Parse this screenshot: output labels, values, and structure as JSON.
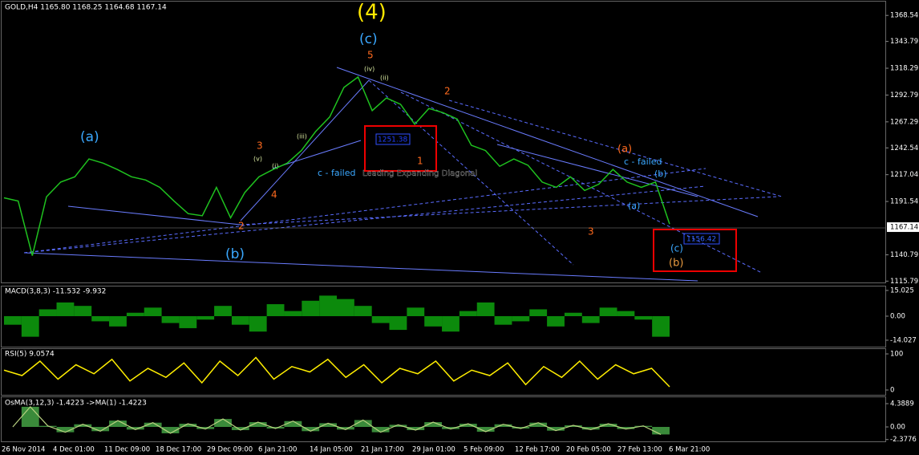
{
  "header": "GOLD,H4  1165.80 1168.25 1164.68 1167.14",
  "price": {
    "ylim": [
      1114.5,
      1383.2
    ],
    "yticks": [
      1368.54,
      1343.79,
      1318.29,
      1292.79,
      1267.29,
      1242.54,
      1217.04,
      1191.54,
      1140.79,
      1115.79
    ],
    "current": 1167.14,
    "closes": [
      1195,
      1192,
      1140,
      1196,
      1210,
      1215,
      1232,
      1228,
      1222,
      1215,
      1212,
      1205,
      1192,
      1180,
      1178,
      1205,
      1176,
      1200,
      1215,
      1222,
      1228,
      1240,
      1258,
      1272,
      1300,
      1310,
      1278,
      1290,
      1284,
      1265,
      1280,
      1276,
      1270,
      1245,
      1240,
      1225,
      1232,
      1226,
      1210,
      1205,
      1215,
      1202,
      1208,
      1222,
      1210,
      1205,
      1210,
      1170
    ]
  },
  "time_axis": [
    "26 Nov 2014",
    "4 Dec 01:00",
    "11 Dec 09:00",
    "18 Dec 17:00",
    "29 Dec 09:00",
    "6 Jan 21:00",
    "14 Jan 05:00",
    "21 Jan 17:00",
    "29 Jan 01:00",
    "5 Feb 09:00",
    "12 Feb 17:00",
    "20 Feb 05:00",
    "27 Feb 13:00",
    "6 Mar 21:00"
  ],
  "annotations": {
    "wave4": "(4)",
    "wave_c_top": "(c)",
    "five": "5",
    "a_blue": "(a)",
    "b_blue": "(b)",
    "three_left": "3",
    "four_left": "4",
    "two_left": "2",
    "two_mid": "2",
    "one_mid": "1",
    "three_mid": "3",
    "a_orange": "(a)",
    "c_failed_left": "c - failed",
    "c_failed_right": "c - failed",
    "b_right": "(b)",
    "a_right": "(a)",
    "c_bottom": "(c)",
    "b_bottom": "(b)",
    "diagonal": "Leading Expanding Diagonal",
    "box_high": "1251.38",
    "box_low": "1156.42",
    "iv": "(iv)",
    "v": "(v)",
    "iii": "(iii)",
    "ii": "(ii)",
    "i": "(i)"
  },
  "macd": {
    "label": "MACD(3,8,3) -11.532 -9.932",
    "ylim": [
      -17.8,
      17.8
    ],
    "yticks": [
      15.025,
      {
        "value": 0,
        "label": "0.00"
      },
      -14.027
    ],
    "values": [
      -5,
      -12,
      4,
      8,
      6,
      -3,
      -6,
      2,
      5,
      -4,
      -7,
      -2,
      6,
      -5,
      -9,
      7,
      3,
      9,
      12,
      10,
      6,
      -4,
      -8,
      5,
      -6,
      -9,
      3,
      8,
      -5,
      -3,
      4,
      -6,
      2,
      -4,
      5,
      3,
      -2,
      -12
    ]
  },
  "rsi": {
    "label": "RSI(5) 9.0574",
    "ylim": [
      -13.3,
      115.6
    ],
    "yticks": [
      100,
      0
    ],
    "values": [
      55,
      40,
      80,
      30,
      70,
      45,
      85,
      25,
      60,
      35,
      75,
      20,
      80,
      40,
      90,
      30,
      65,
      50,
      85,
      35,
      70,
      20,
      60,
      45,
      80,
      25,
      55,
      40,
      75,
      15,
      65,
      35,
      80,
      30,
      70,
      45,
      60,
      9
    ]
  },
  "osma": {
    "label": "OsMA(3,12,3) -1.4223  ->MA(1) -1.4223",
    "ylim": [
      -2.72,
      5.75
    ],
    "yticks": [
      4.3889,
      {
        "value": 0,
        "label": "0.00"
      },
      -2.3776
    ],
    "values": [
      0,
      3.8,
      0.2,
      -1,
      0.5,
      -0.8,
      1.2,
      -0.5,
      0.8,
      -1.2,
      0.6,
      -0.4,
      1.5,
      -0.6,
      0.9,
      -0.3,
      1.1,
      -0.8,
      0.7,
      -0.5,
      1.3,
      -1,
      0.4,
      -0.6,
      0.9,
      -0.4,
      0.6,
      -0.9,
      0.5,
      -0.3,
      0.8,
      -0.7,
      0.3,
      -0.5,
      0.6,
      -0.4,
      0.2,
      -1.42
    ]
  }
}
